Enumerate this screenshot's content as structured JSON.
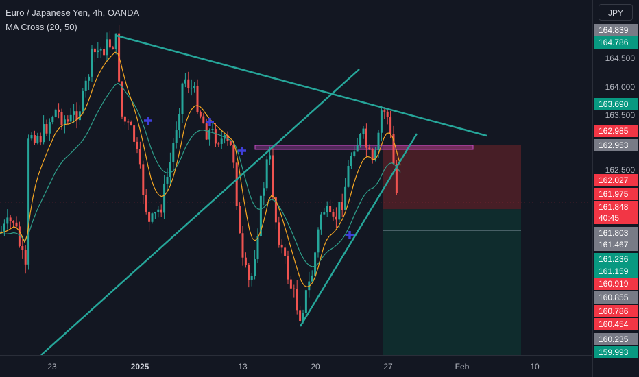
{
  "legend": {
    "title": "Euro / Japanese Yen, 4h, OANDA",
    "indicator": "MA Cross (20, 50)"
  },
  "currency_button": "JPY",
  "colors": {
    "background": "#131722",
    "bull": "#26a69a",
    "bear": "#ef5350",
    "ma_fast": "#f5a623",
    "ma_slow": "#2e9e8a",
    "trendline": "#26a69a",
    "cross_marker": "#3f3fd8",
    "zone_stop": "#4a1f27",
    "zone_target": "#0f2d2e",
    "resistance_box": "#c54bc4"
  },
  "price_axis": {
    "ticks": [
      "164.500",
      "164.000",
      "163.500",
      "162.500"
    ],
    "tags": [
      {
        "label": "164.839",
        "color": "#787b86"
      },
      {
        "label": "164.786",
        "color": "#089981"
      },
      {
        "label": "163.690",
        "color": "#089981"
      },
      {
        "label": "162.985",
        "color": "#f23645"
      },
      {
        "label": "162.953",
        "color": "#787b86"
      },
      {
        "label": "162.027",
        "color": "#f23645"
      },
      {
        "label": "161.975",
        "color": "#f23645"
      },
      {
        "label": "161.848",
        "color": "#f23645"
      },
      {
        "label": "40:45",
        "color": "#f23645"
      },
      {
        "label": "161.803",
        "color": "#787b86"
      },
      {
        "label": "161.467",
        "color": "#787b86"
      },
      {
        "label": "161.236",
        "color": "#089981"
      },
      {
        "label": "161.159",
        "color": "#089981"
      },
      {
        "label": "160.919",
        "color": "#f23645"
      },
      {
        "label": "160.855",
        "color": "#787b86"
      },
      {
        "label": "160.786",
        "color": "#f23645"
      },
      {
        "label": "160.454",
        "color": "#f23645"
      },
      {
        "label": "160.235",
        "color": "#787b86"
      },
      {
        "label": "159.993",
        "color": "#089981"
      }
    ]
  },
  "time_axis": {
    "labels": [
      {
        "text": "23",
        "bold": false
      },
      {
        "text": "2025",
        "bold": true
      },
      {
        "text": "13",
        "bold": false
      },
      {
        "text": "20",
        "bold": false
      },
      {
        "text": "27",
        "bold": false
      },
      {
        "text": "Feb",
        "bold": false
      },
      {
        "text": "10",
        "bold": false
      }
    ]
  },
  "chart_data": {
    "type": "candlestick",
    "symbol": "EURJPY",
    "timeframe": "4h",
    "ylim": [
      159.9,
      165.0
    ],
    "current_price": 161.848,
    "countdown": "40:45",
    "series": [
      {
        "name": "MA Cross (20, 50)"
      }
    ],
    "drawings": {
      "descending_trendline": [
        [
          164.84,
          "Dec 30"
        ],
        [
          162.75,
          "Feb 3"
        ]
      ],
      "ascending_trendline_lower": [
        [
          159.95,
          "Dec 18"
        ],
        [
          164.3,
          "Jan 22"
        ]
      ],
      "ascending_trendline_upper": [
        [
          160.45,
          "Jan 16"
        ],
        [
          162.95,
          "Jan 28"
        ]
      ],
      "resistance_box": [
        162.985,
        162.953
      ],
      "stop_zone": [
        162.985,
        161.848
      ],
      "target_zone": [
        161.848,
        159.993
      ]
    }
  }
}
